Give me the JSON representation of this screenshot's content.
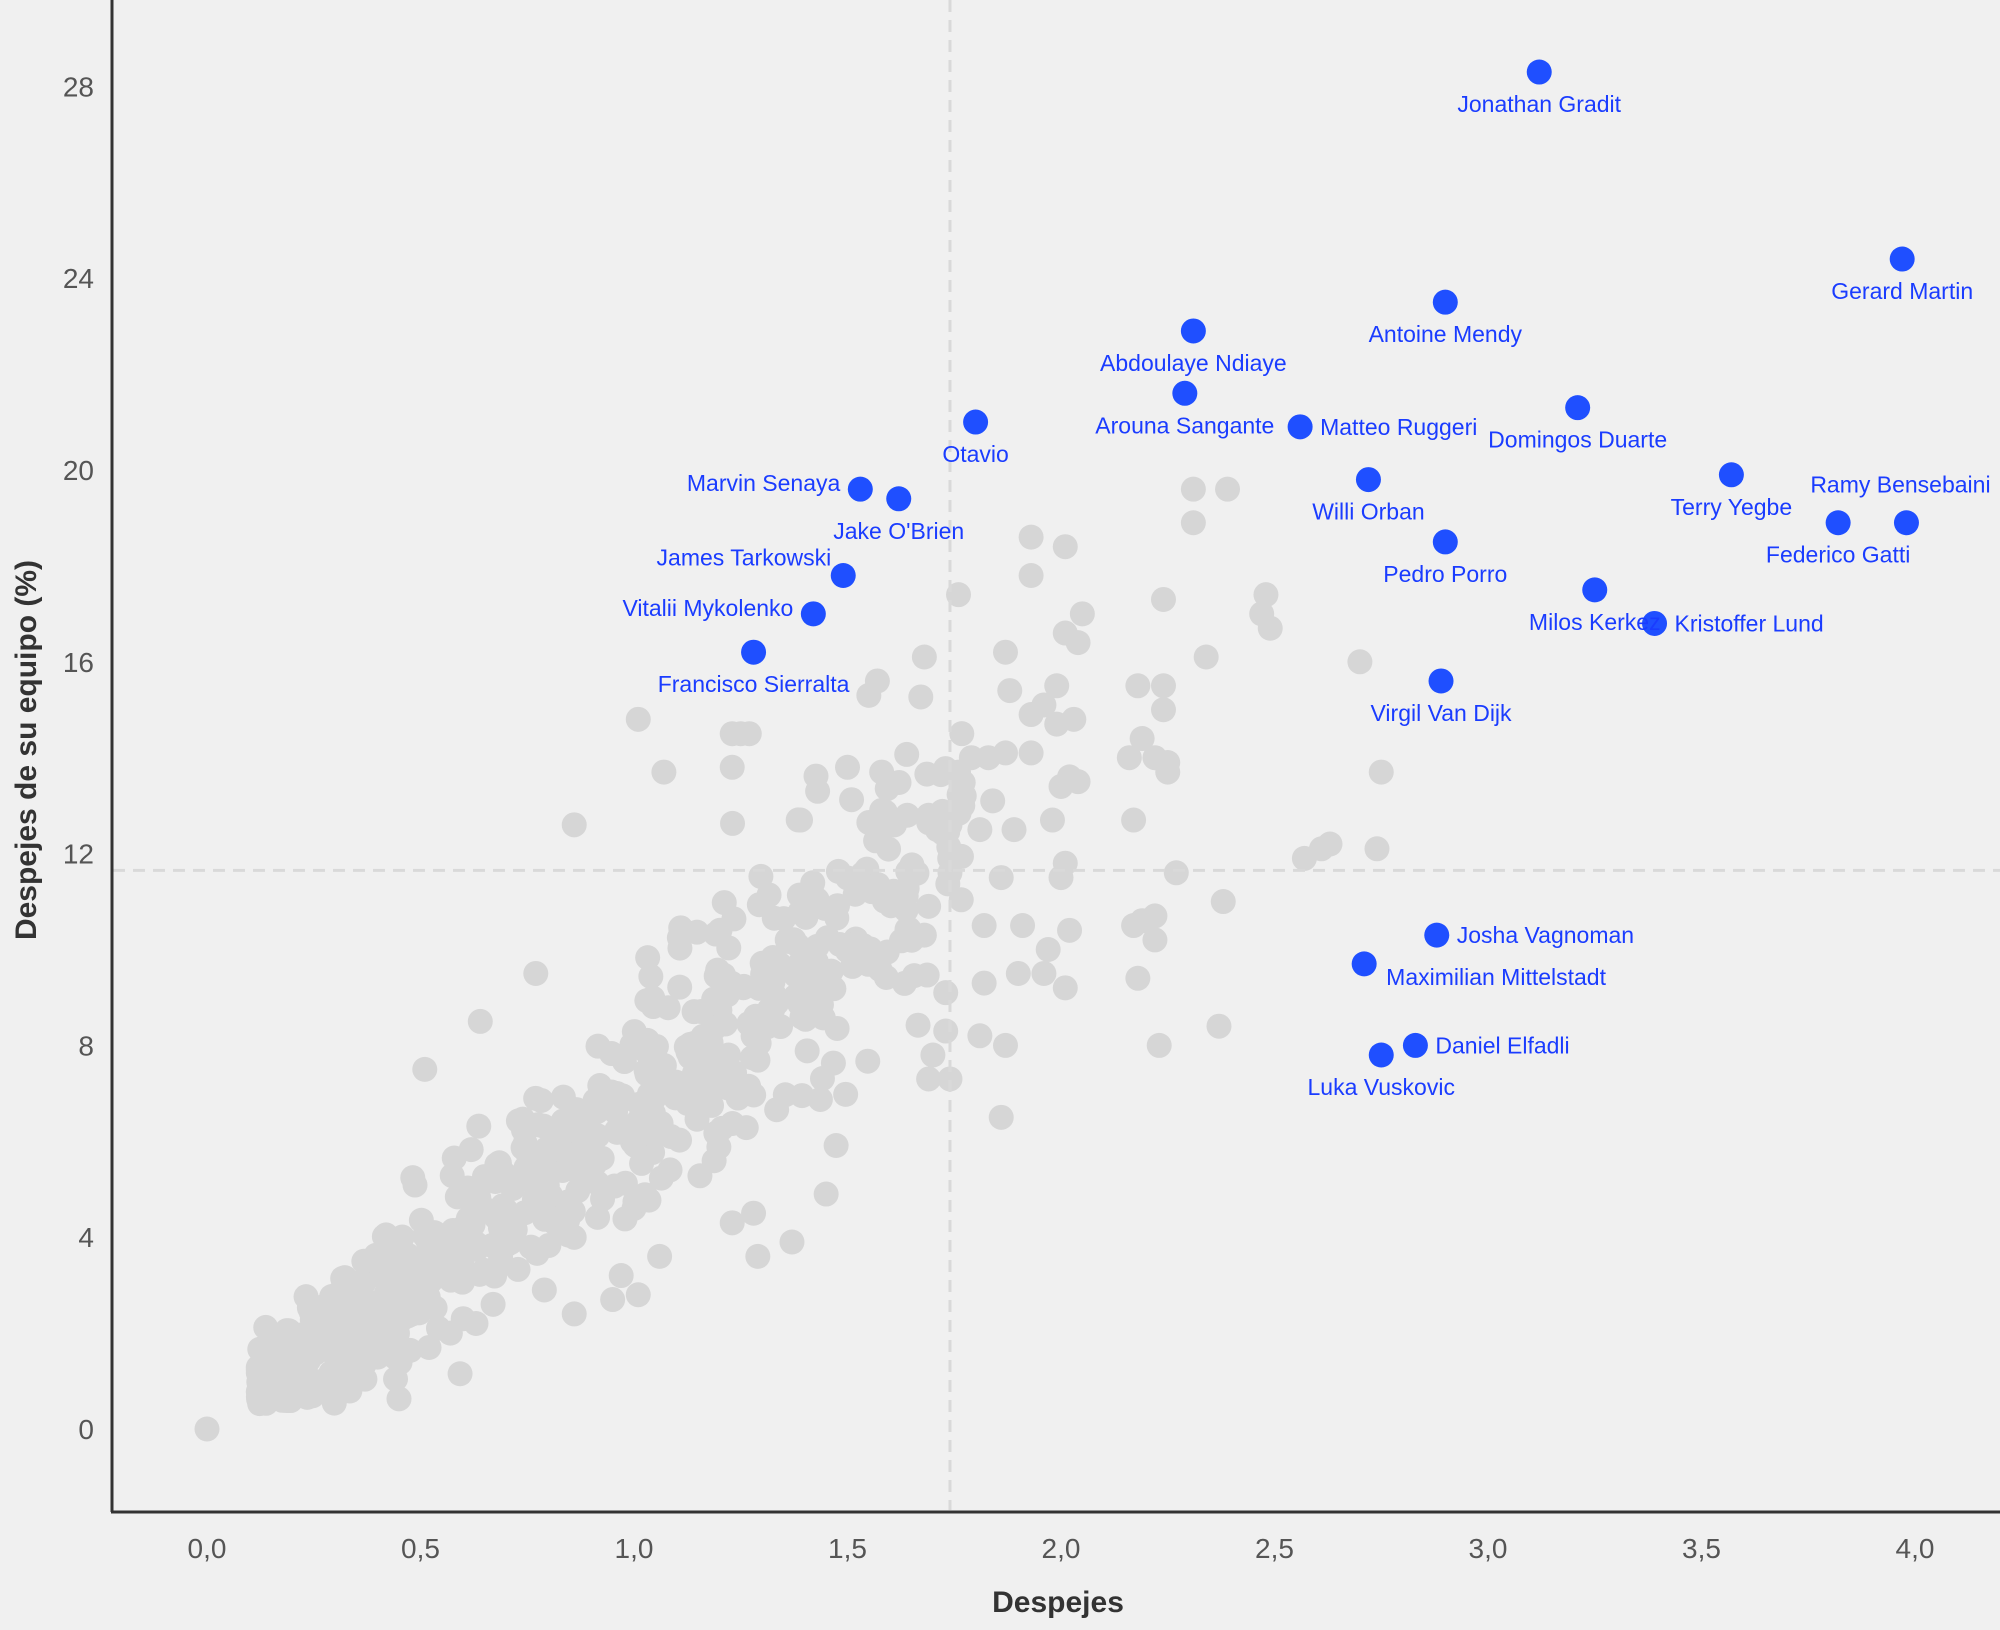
{
  "chart_data": {
    "type": "scatter",
    "xlabel": "Despejes",
    "ylabel": "Despejes de su equipo (%)",
    "xlim": [
      -0.22,
      4.2
    ],
    "ylim": [
      -1.7,
      30.0
    ],
    "x_ticks": [
      0.0,
      0.5,
      1.0,
      1.5,
      2.0,
      2.5,
      3.0,
      3.5,
      4.0
    ],
    "x_tick_labels": [
      "0,0",
      "0,5",
      "1,0",
      "1,5",
      "2,0",
      "2,5",
      "3,0",
      "3,5",
      "4,0"
    ],
    "y_ticks": [
      0,
      4,
      8,
      12,
      16,
      20,
      24,
      28
    ],
    "y_tick_labels": [
      "0",
      "4",
      "8",
      "12",
      "16",
      "20",
      "24",
      "28"
    ],
    "reference_lines": {
      "x": 1.74,
      "y": 11.65
    },
    "grid": false,
    "colors": {
      "highlight": "#1f4fff",
      "highlight_label": "#1a3cff",
      "background_points": "#d6d6d6",
      "axis": "#333333",
      "reference": "#d9d9d9"
    },
    "highlighted": [
      {
        "name": "Jonathan Gradit",
        "x": 3.12,
        "y": 28.3,
        "label_pos": "below"
      },
      {
        "name": "Gerard Martin",
        "x": 3.97,
        "y": 24.4,
        "label_pos": "below"
      },
      {
        "name": "Antoine Mendy",
        "x": 2.9,
        "y": 23.5,
        "label_pos": "below"
      },
      {
        "name": "Abdoulaye Ndiaye",
        "x": 2.31,
        "y": 22.9,
        "label_pos": "below"
      },
      {
        "name": "Arouna Sangante",
        "x": 2.29,
        "y": 21.6,
        "label_pos": "below"
      },
      {
        "name": "Matteo Ruggeri",
        "x": 2.56,
        "y": 20.9,
        "label_pos": "right"
      },
      {
        "name": "Domingos Duarte",
        "x": 3.21,
        "y": 21.3,
        "label_pos": "below"
      },
      {
        "name": "Otavio",
        "x": 1.8,
        "y": 21.0,
        "label_pos": "below"
      },
      {
        "name": "Marvin Senaya",
        "x": 1.53,
        "y": 19.6,
        "label_pos": "left"
      },
      {
        "name": "Jake O'Brien",
        "x": 1.62,
        "y": 19.4,
        "label_pos": "below"
      },
      {
        "name": "Willi Orban",
        "x": 2.72,
        "y": 19.8,
        "label_pos": "below"
      },
      {
        "name": "Terry Yegbe",
        "x": 3.57,
        "y": 19.9,
        "label_pos": "below"
      },
      {
        "name": "Ramy Bensebaini",
        "x": 3.98,
        "y": 18.9,
        "label_pos": "above"
      },
      {
        "name": "Federico Gatti",
        "x": 3.82,
        "y": 18.9,
        "label_pos": "below"
      },
      {
        "name": "Pedro Porro",
        "x": 2.9,
        "y": 18.5,
        "label_pos": "below"
      },
      {
        "name": "James Tarkowski",
        "x": 1.49,
        "y": 17.8,
        "label_pos": "upper-left"
      },
      {
        "name": "Milos Kerkez",
        "x": 3.25,
        "y": 17.5,
        "label_pos": "below"
      },
      {
        "name": "Kristoffer Lund",
        "x": 3.39,
        "y": 16.8,
        "label_pos": "right"
      },
      {
        "name": "Vitalii Mykolenko",
        "x": 1.42,
        "y": 17.0,
        "label_pos": "left"
      },
      {
        "name": "Francisco Sierralta",
        "x": 1.28,
        "y": 16.2,
        "label_pos": "below"
      },
      {
        "name": "Virgil Van Dijk",
        "x": 2.89,
        "y": 15.6,
        "label_pos": "below"
      },
      {
        "name": "Josha Vagnoman",
        "x": 2.88,
        "y": 10.3,
        "label_pos": "right"
      },
      {
        "name": "Maximilian Mittelstadt",
        "x": 2.71,
        "y": 9.7,
        "label_pos": "lower-right"
      },
      {
        "name": "Daniel Elfadli",
        "x": 2.83,
        "y": 8.0,
        "label_pos": "right"
      },
      {
        "name": "Luka Vuskovic",
        "x": 2.75,
        "y": 7.8,
        "label_pos": "below"
      }
    ],
    "background_points": [
      [
        0.0,
        0.0
      ],
      [
        0.86,
        12.6
      ],
      [
        0.64,
        8.5
      ],
      [
        0.77,
        9.5
      ],
      [
        0.51,
        7.5
      ],
      [
        1.07,
        13.7
      ],
      [
        1.01,
        14.8
      ],
      [
        1.23,
        14.5
      ],
      [
        1.25,
        14.5
      ],
      [
        1.27,
        14.5
      ],
      [
        1.23,
        13.8
      ],
      [
        1.39,
        12.7
      ],
      [
        1.43,
        13.3
      ],
      [
        1.5,
        13.8
      ],
      [
        1.57,
        15.6
      ],
      [
        1.55,
        15.3
      ],
      [
        1.58,
        13.7
      ],
      [
        1.58,
        12.9
      ],
      [
        1.64,
        12.8
      ],
      [
        1.61,
        12.6
      ],
      [
        1.69,
        12.8
      ],
      [
        1.71,
        12.5
      ],
      [
        1.74,
        12.6
      ],
      [
        1.76,
        13.7
      ],
      [
        1.77,
        13.0
      ],
      [
        1.79,
        14.0
      ],
      [
        1.83,
        14.0
      ],
      [
        1.87,
        14.1
      ],
      [
        1.84,
        13.1
      ],
      [
        1.81,
        12.5
      ],
      [
        1.89,
        12.5
      ],
      [
        1.68,
        16.1
      ],
      [
        1.76,
        17.4
      ],
      [
        1.93,
        17.8
      ],
      [
        1.93,
        18.6
      ],
      [
        2.01,
        18.4
      ],
      [
        2.05,
        17.0
      ],
      [
        2.01,
        16.6
      ],
      [
        2.04,
        16.4
      ],
      [
        1.87,
        16.2
      ],
      [
        1.88,
        15.4
      ],
      [
        1.93,
        14.9
      ],
      [
        1.96,
        15.1
      ],
      [
        1.99,
        15.5
      ],
      [
        1.99,
        14.7
      ],
      [
        2.03,
        14.8
      ],
      [
        1.93,
        14.1
      ],
      [
        2.0,
        13.4
      ],
      [
        2.02,
        13.6
      ],
      [
        2.04,
        13.5
      ],
      [
        1.98,
        12.7
      ],
      [
        2.16,
        14.0
      ],
      [
        2.19,
        14.4
      ],
      [
        2.22,
        14.0
      ],
      [
        2.25,
        13.7
      ],
      [
        2.25,
        13.9
      ],
      [
        2.18,
        15.5
      ],
      [
        2.24,
        15.5
      ],
      [
        2.24,
        15.0
      ],
      [
        2.24,
        17.3
      ],
      [
        2.34,
        16.1
      ],
      [
        2.31,
        18.9
      ],
      [
        2.31,
        19.6
      ],
      [
        2.39,
        19.6
      ],
      [
        2.48,
        17.4
      ],
      [
        2.47,
        17.0
      ],
      [
        2.49,
        16.7
      ],
      [
        2.7,
        16.0
      ],
      [
        2.75,
        13.7
      ],
      [
        2.74,
        12.1
      ],
      [
        2.63,
        12.2
      ],
      [
        2.61,
        12.1
      ],
      [
        2.57,
        11.9
      ],
      [
        2.38,
        11.0
      ],
      [
        2.27,
        11.6
      ],
      [
        2.17,
        12.7
      ],
      [
        2.17,
        10.5
      ],
      [
        2.19,
        10.6
      ],
      [
        2.22,
        10.7
      ],
      [
        2.22,
        10.2
      ],
      [
        2.18,
        9.4
      ],
      [
        2.23,
        8.0
      ],
      [
        2.37,
        8.4
      ],
      [
        2.01,
        9.2
      ],
      [
        2.02,
        10.4
      ],
      [
        2.01,
        11.8
      ],
      [
        2.0,
        11.5
      ],
      [
        1.97,
        10.0
      ],
      [
        1.96,
        9.5
      ],
      [
        1.9,
        9.5
      ],
      [
        1.91,
        10.5
      ],
      [
        1.86,
        11.5
      ],
      [
        1.82,
        10.5
      ],
      [
        1.82,
        9.3
      ],
      [
        1.81,
        8.2
      ],
      [
        1.87,
        8.0
      ],
      [
        1.86,
        6.5
      ],
      [
        1.74,
        7.3
      ],
      [
        1.69,
        7.3
      ],
      [
        1.73,
        8.3
      ],
      [
        1.7,
        7.8
      ],
      [
        1.73,
        9.1
      ],
      [
        1.74,
        11.6
      ],
      [
        1.69,
        10.9
      ],
      [
        1.68,
        10.3
      ],
      [
        1.29,
        3.6
      ],
      [
        1.37,
        3.9
      ],
      [
        1.45,
        4.9
      ],
      [
        1.28,
        4.5
      ],
      [
        1.23,
        4.3
      ],
      [
        0.86,
        2.4
      ],
      [
        0.95,
        2.7
      ],
      [
        1.01,
        2.8
      ],
      [
        1.06,
        3.6
      ],
      [
        1.0,
        4.6
      ],
      [
        0.97,
        3.2
      ],
      [
        0.79,
        2.9
      ],
      [
        0.67,
        2.6
      ],
      [
        0.57,
        2.0
      ],
      [
        0.6,
        2.3
      ],
      [
        0.63,
        2.2
      ],
      [
        0.52,
        1.7
      ],
      [
        0.44,
        1.5
      ],
      [
        0.4,
        1.5
      ]
    ],
    "background_cloud": {
      "count": 650,
      "seed": 7,
      "x_range": [
        0.12,
        1.78
      ],
      "slope": 7.0,
      "intercept": -0.2,
      "spread": 1.6
    }
  }
}
